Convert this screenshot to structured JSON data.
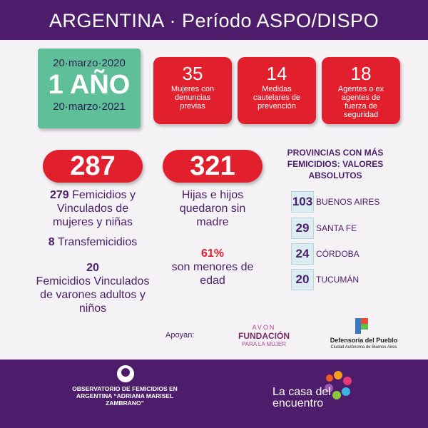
{
  "header": {
    "title": "ARGENTINA · Período ASPO/DISPO"
  },
  "period": {
    "start": "20·marzo·2020",
    "duration": "1 AÑO",
    "end": "20·marzo·2021"
  },
  "stats": [
    {
      "number": 35,
      "label": "Mujeres con denuncias previas"
    },
    {
      "number": 14,
      "label": "Medidas cautelares de prevención"
    },
    {
      "number": 18,
      "label": "Agentes o ex agentes de fuerza de seguridad"
    }
  ],
  "left": {
    "total": 287,
    "femicides": {
      "number": 279,
      "label": "Femicidios y Vinculados de mujeres y niñas"
    },
    "transfemicides": {
      "number": 8,
      "label": "Transfemicidios"
    },
    "vinculados_varones": {
      "number": 20,
      "label": "Femicidios Vinculados de varones adultos y niños"
    }
  },
  "middle": {
    "total": 321,
    "label": "Hijas e hijos quedaron sin madre",
    "minors": {
      "percent": "61%",
      "label": "son menores de edad"
    }
  },
  "provinces": {
    "title": "PROVINCIAS CON MÁS FEMICIDIOS: VALORES ABSOLUTOS",
    "items": [
      {
        "value": 103,
        "name": "BUENOS AIRES"
      },
      {
        "value": 29,
        "name": "SANTA FE"
      },
      {
        "value": 24,
        "name": "CÓRDOBA"
      },
      {
        "value": 20,
        "name": "TUCUMÁN"
      }
    ]
  },
  "support": {
    "label": "Apoyan:",
    "sponsors": [
      {
        "brand": "AVON",
        "name": "FUNDACIÓN",
        "sub": "PARA LA MUJER"
      },
      {
        "name": "Defensoría del Pueblo",
        "sub": "Ciudad Autónoma de Buenos Aires"
      }
    ]
  },
  "footer": {
    "observatory": "OBSERVATORIO DE FEMICIDIOS EN ARGENTINA “ADRIANA MARISEL ZAMBRANO”",
    "organization": "La casa del encuentro"
  }
}
